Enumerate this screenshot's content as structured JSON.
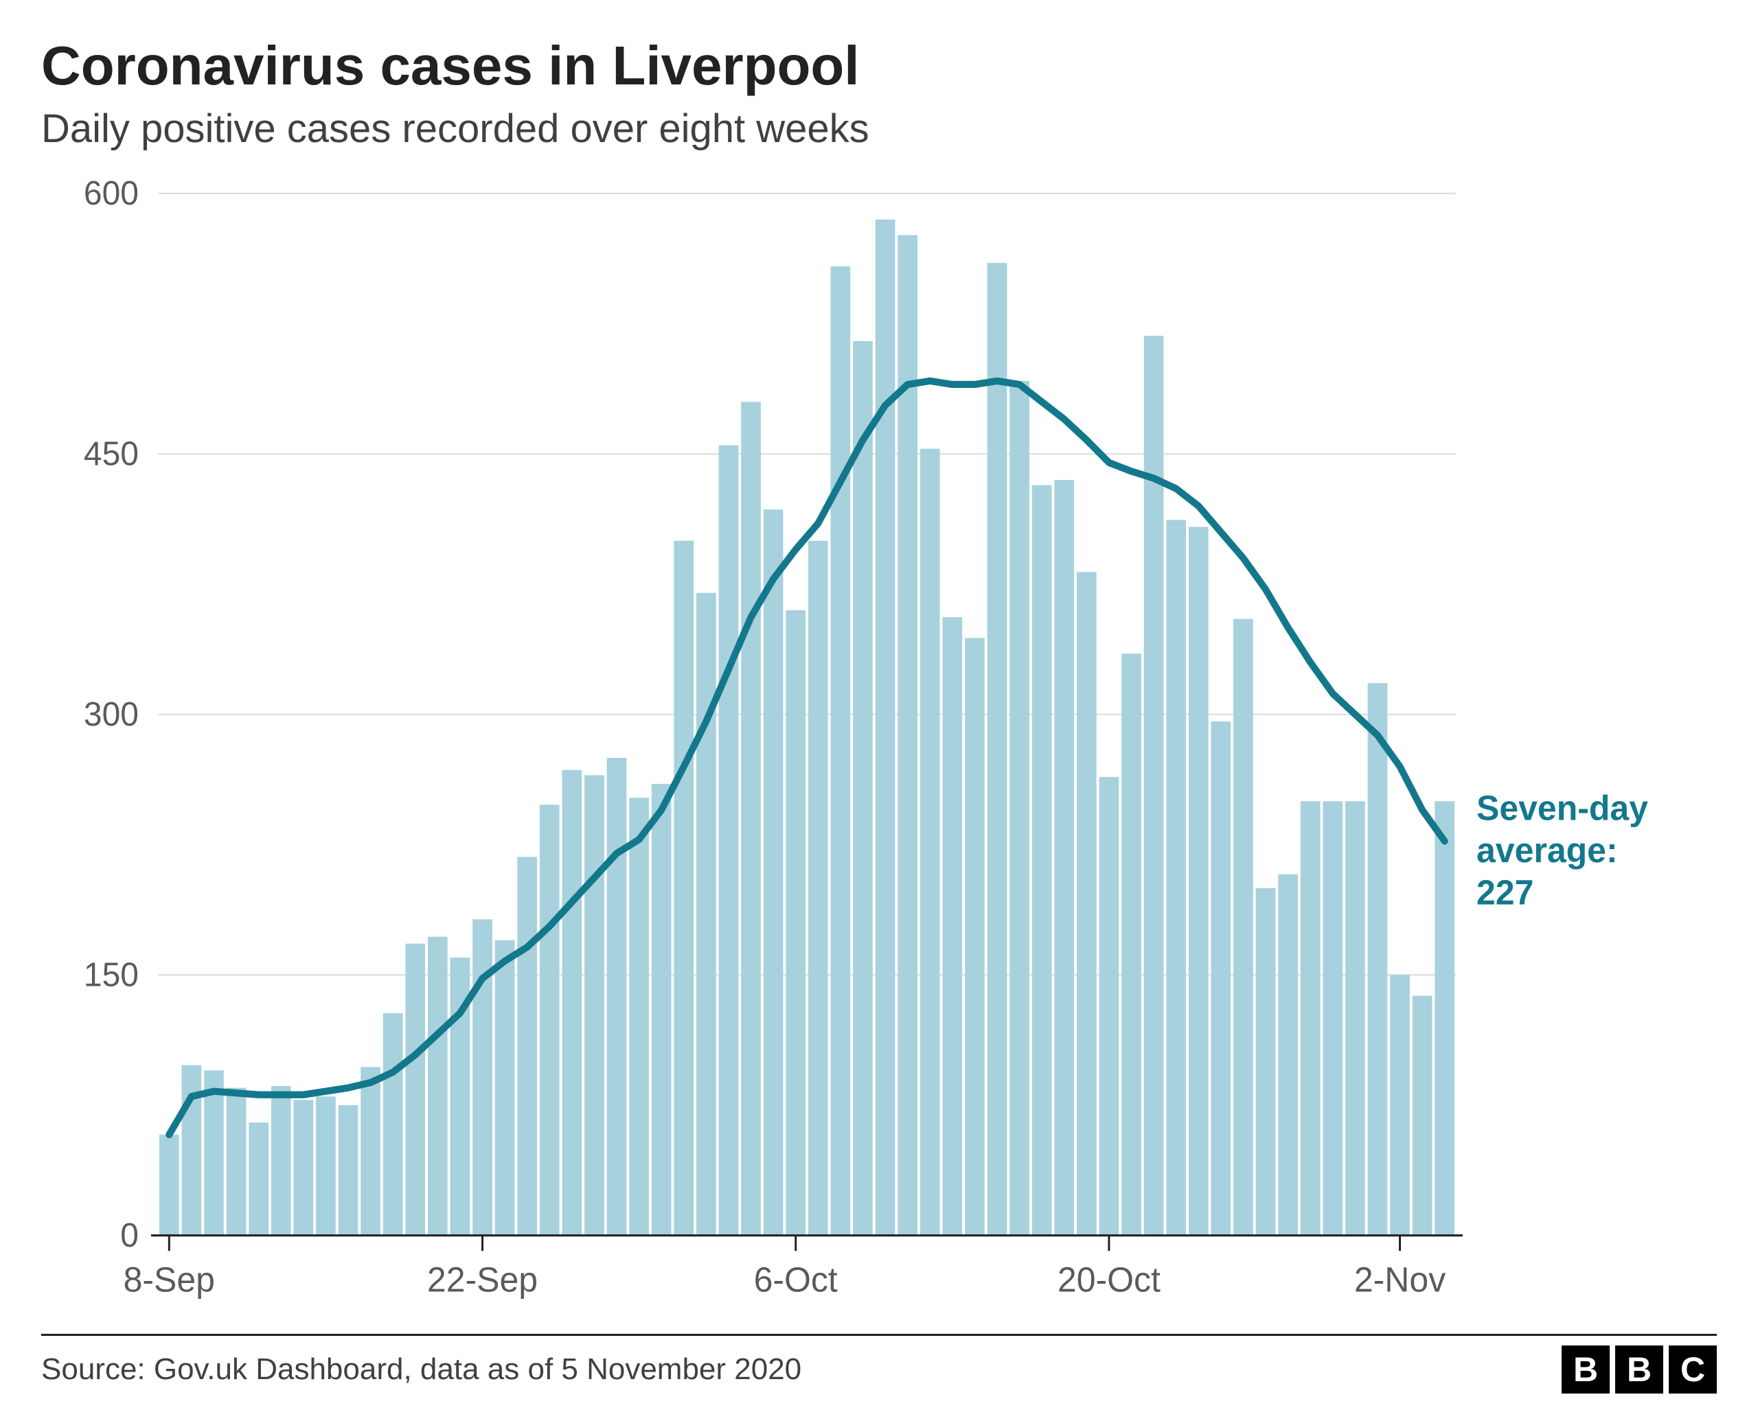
{
  "title": "Coronavirus cases in Liverpool",
  "subtitle": "Daily positive cases recorded over eight weeks",
  "source": "Source: Gov.uk Dashboard, data as of 5 November 2020",
  "annotation": {
    "line1": "Seven-day",
    "line2": "average:",
    "value": "227"
  },
  "logo": [
    "B",
    "B",
    "C"
  ],
  "chart": {
    "type": "bar+line",
    "bar_color": "#a7d1dd",
    "line_color": "#13788c",
    "line_width": 10,
    "grid_color": "#dcdcdc",
    "axis_color": "#222222",
    "bg_color": "#ffffff",
    "text_color": "#5a5a5a",
    "annotation_color": "#13788c",
    "ylim": [
      0,
      600
    ],
    "ytick_step": 150,
    "yticks": [
      0,
      150,
      300,
      450,
      600
    ],
    "xtick_step_days": 14,
    "xticks": [
      "8-Sep",
      "22-Sep",
      "6-Oct",
      "20-Oct",
      "2-Nov"
    ],
    "xtick_indices": [
      0,
      14,
      28,
      42,
      55
    ],
    "bar_gap_ratio": 0.12,
    "bars": [
      58,
      98,
      95,
      85,
      65,
      86,
      78,
      80,
      75,
      97,
      128,
      168,
      172,
      160,
      182,
      170,
      218,
      248,
      268,
      265,
      275,
      252,
      260,
      400,
      370,
      455,
      480,
      418,
      360,
      400,
      558,
      515,
      585,
      576,
      453,
      356,
      344,
      560,
      492,
      432,
      435,
      382,
      264,
      335,
      518,
      412,
      408,
      296,
      355,
      200,
      208,
      250,
      250,
      250,
      318,
      150,
      138,
      250
    ],
    "line": [
      58,
      80,
      83,
      82,
      81,
      81,
      81,
      83,
      85,
      88,
      94,
      104,
      116,
      128,
      148,
      158,
      166,
      178,
      192,
      206,
      220,
      228,
      245,
      270,
      296,
      326,
      356,
      378,
      395,
      410,
      434,
      458,
      478,
      490,
      492,
      490,
      490,
      492,
      490,
      480,
      470,
      458,
      445,
      440,
      436,
      430,
      420,
      405,
      390,
      372,
      350,
      330,
      312,
      300,
      288,
      270,
      245,
      227
    ]
  }
}
